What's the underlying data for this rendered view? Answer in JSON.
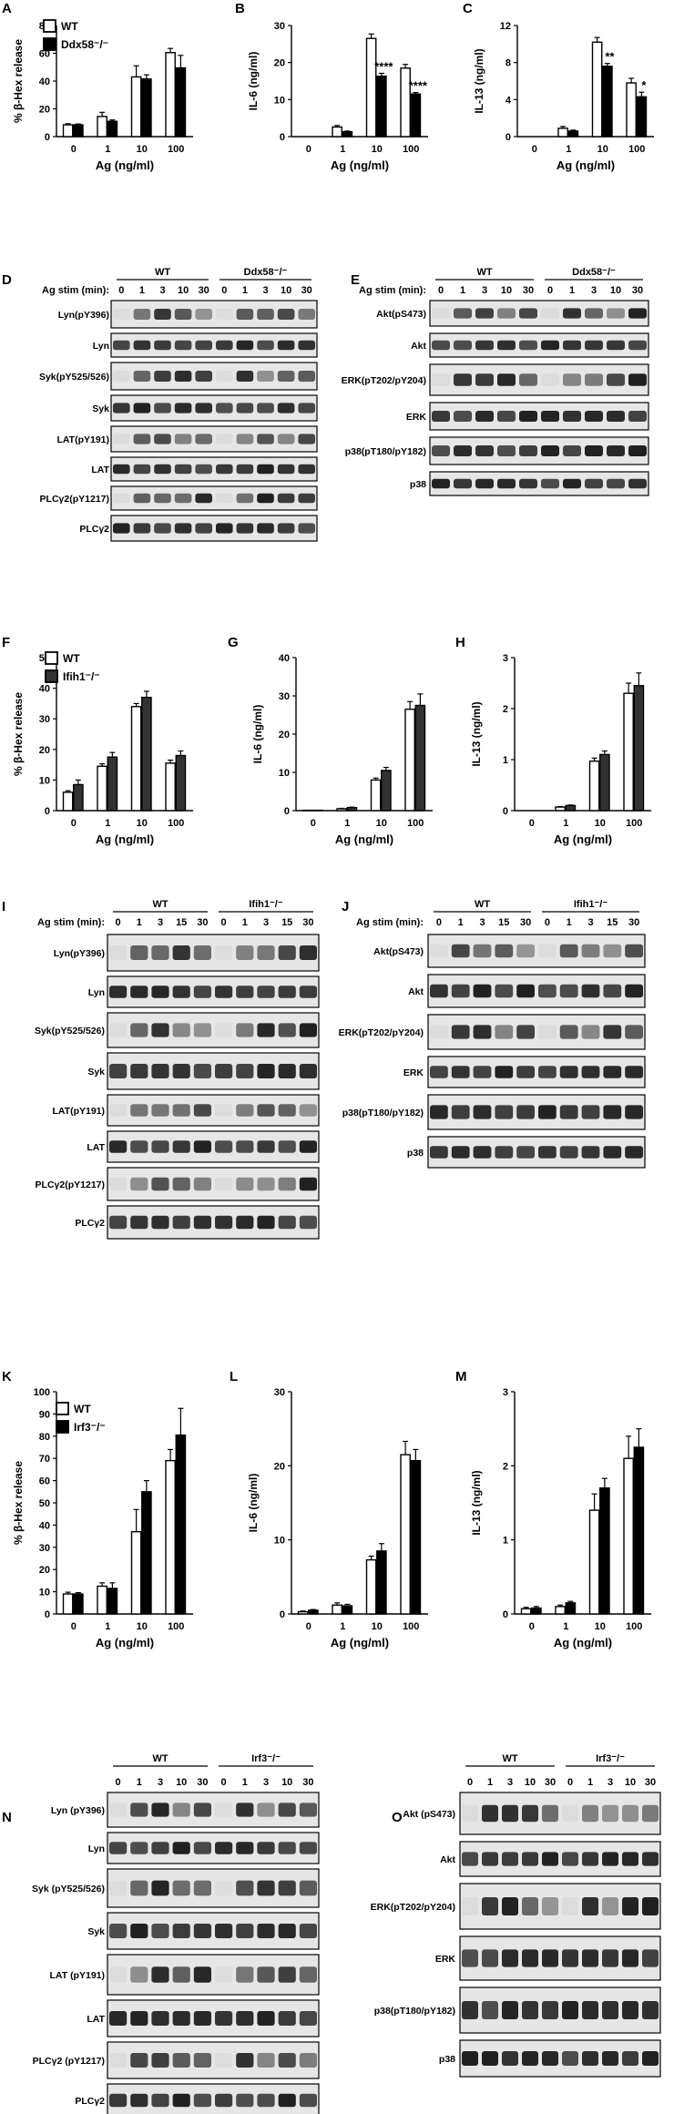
{
  "panels": {
    "A": {
      "letter": "A",
      "ylabel": "% β-Hex release",
      "xlabel": "Ag (ng/ml)",
      "ymax": 80,
      "yticks": [
        0,
        20,
        40,
        60,
        80
      ],
      "categories": [
        "0",
        "1",
        "10",
        "100"
      ],
      "legend": [
        {
          "label": "WT",
          "fill": "#ffffff"
        },
        {
          "label": "Ddx58⁻/⁻",
          "fill": "#000000"
        }
      ],
      "series": [
        {
          "values": [
            8.5,
            14.5,
            43,
            60.5
          ],
          "err": [
            0.8,
            3,
            8,
            3
          ],
          "fill": "#ffffff"
        },
        {
          "values": [
            8.5,
            11,
            41.5,
            49.5
          ],
          "err": [
            0.6,
            1,
            3,
            9
          ],
          "fill": "#000000"
        }
      ],
      "stars": []
    },
    "B": {
      "letter": "B",
      "ylabel": "IL-6 (ng/ml)",
      "xlabel": "Ag (ng/ml)",
      "ymax": 30,
      "yticks": [
        0,
        10,
        20,
        30
      ],
      "categories": [
        "0",
        "1",
        "10",
        "100"
      ],
      "legend": [],
      "series": [
        {
          "values": [
            0,
            2.6,
            26.5,
            18.5
          ],
          "err": [
            0,
            0.4,
            1.2,
            1
          ],
          "fill": "#ffffff"
        },
        {
          "values": [
            0,
            1.3,
            16.3,
            11.5
          ],
          "err": [
            0,
            0.2,
            0.8,
            0.4
          ],
          "fill": "#000000"
        }
      ],
      "stars": [
        {
          "cat": 2,
          "label": "****"
        },
        {
          "cat": 3,
          "label": "****"
        }
      ]
    },
    "C": {
      "letter": "C",
      "ylabel": "IL-13 (ng/ml)",
      "xlabel": "Ag (ng/ml)",
      "ymax": 12,
      "yticks": [
        0,
        4,
        8,
        12
      ],
      "categories": [
        "0",
        "1",
        "10",
        "100"
      ],
      "legend": [],
      "series": [
        {
          "values": [
            0,
            0.9,
            10.2,
            5.8
          ],
          "err": [
            0,
            0.2,
            0.5,
            0.5
          ],
          "fill": "#ffffff"
        },
        {
          "values": [
            0,
            0.6,
            7.6,
            4.3
          ],
          "err": [
            0,
            0.1,
            0.3,
            0.5
          ],
          "fill": "#000000"
        }
      ],
      "stars": [
        {
          "cat": 2,
          "label": "**"
        },
        {
          "cat": 3,
          "label": "*"
        }
      ]
    },
    "F": {
      "letter": "F",
      "ylabel": "% β-Hex release",
      "xlabel": "Ag (ng/ml)",
      "ymax": 50,
      "yticks": [
        0,
        10,
        20,
        30,
        40,
        50
      ],
      "categories": [
        "0",
        "1",
        "10",
        "100"
      ],
      "legend": [
        {
          "label": "WT",
          "fill": "#ffffff"
        },
        {
          "label": "Ifih1⁻/⁻",
          "fill": "#333333"
        }
      ],
      "series": [
        {
          "values": [
            6,
            14.5,
            34,
            15.5
          ],
          "err": [
            0.5,
            0.8,
            1,
            1
          ],
          "fill": "#ffffff"
        },
        {
          "values": [
            8.5,
            17.5,
            37,
            18
          ],
          "err": [
            1.5,
            1.5,
            2,
            1.5
          ],
          "fill": "#333333"
        }
      ],
      "stars": []
    },
    "G": {
      "letter": "G",
      "ylabel": "IL-6 (ng/ml)",
      "xlabel": "Ag (ng/ml)",
      "ymax": 40,
      "yticks": [
        0,
        10,
        20,
        30,
        40
      ],
      "categories": [
        "0",
        "1",
        "10",
        "100"
      ],
      "legend": [],
      "series": [
        {
          "values": [
            0.1,
            0.5,
            8,
            26.5
          ],
          "err": [
            0,
            0.1,
            0.5,
            2
          ],
          "fill": "#ffffff"
        },
        {
          "values": [
            0.1,
            0.8,
            10.5,
            27.5
          ],
          "err": [
            0,
            0.1,
            0.8,
            3
          ],
          "fill": "#333333"
        }
      ],
      "stars": []
    },
    "H": {
      "letter": "H",
      "ylabel": "IL-13 (ng/ml)",
      "xlabel": "Ag (ng/ml)",
      "ymax": 3,
      "yticks": [
        0,
        1,
        2,
        3
      ],
      "categories": [
        "0",
        "1",
        "10",
        "100"
      ],
      "legend": [],
      "series": [
        {
          "values": [
            0,
            0.07,
            0.97,
            2.3
          ],
          "err": [
            0,
            0.01,
            0.06,
            0.2
          ],
          "fill": "#ffffff"
        },
        {
          "values": [
            0,
            0.1,
            1.1,
            2.45
          ],
          "err": [
            0,
            0.01,
            0.07,
            0.25
          ],
          "fill": "#333333"
        }
      ],
      "stars": []
    },
    "K": {
      "letter": "K",
      "ylabel": "% β-Hex release",
      "xlabel": "Ag (ng/ml)",
      "ymax": 100,
      "yticks": [
        0,
        10,
        20,
        30,
        40,
        50,
        60,
        70,
        80,
        90,
        100
      ],
      "categories": [
        "0",
        "1",
        "10",
        "100"
      ],
      "legend": [
        {
          "label": "WT",
          "fill": "#ffffff"
        },
        {
          "label": "Irf3⁻/⁻",
          "fill": "#000000"
        }
      ],
      "series": [
        {
          "values": [
            9,
            12.5,
            37,
            69
          ],
          "err": [
            0.8,
            1.5,
            10,
            5
          ],
          "fill": "#ffffff"
        },
        {
          "values": [
            9,
            11.5,
            55,
            80.5
          ],
          "err": [
            0.6,
            2.5,
            5,
            12
          ],
          "fill": "#000000"
        }
      ],
      "stars": []
    },
    "L": {
      "letter": "L",
      "ylabel": "IL-6 (ng/ml)",
      "xlabel": "Ag (ng/ml)",
      "ymax": 30,
      "yticks": [
        0,
        10,
        20,
        30
      ],
      "categories": [
        "0",
        "1",
        "10",
        "100"
      ],
      "legend": [],
      "series": [
        {
          "values": [
            0.3,
            1.2,
            7.3,
            21.5
          ],
          "err": [
            0.1,
            0.3,
            0.5,
            1.8
          ],
          "fill": "#ffffff"
        },
        {
          "values": [
            0.5,
            1.1,
            8.5,
            20.7
          ],
          "err": [
            0.1,
            0.2,
            1,
            1.5
          ],
          "fill": "#000000"
        }
      ],
      "stars": []
    },
    "M": {
      "letter": "M",
      "ylabel": "IL-13 (ng/ml)",
      "xlabel": "Ag (ng/ml)",
      "ymax": 3,
      "yticks": [
        0,
        1,
        2,
        3
      ],
      "categories": [
        "0",
        "1",
        "10",
        "100"
      ],
      "legend": [],
      "series": [
        {
          "values": [
            0.07,
            0.1,
            1.4,
            2.1
          ],
          "err": [
            0.02,
            0.02,
            0.22,
            0.3
          ],
          "fill": "#ffffff"
        },
        {
          "values": [
            0.08,
            0.15,
            1.7,
            2.25
          ],
          "err": [
            0.02,
            0.02,
            0.13,
            0.25
          ],
          "fill": "#000000"
        }
      ],
      "stars": []
    }
  },
  "blots": {
    "D": {
      "letter": "D",
      "stim_label": "Ag stim (min):",
      "groups": [
        "WT",
        "Ddx58⁻/⁻"
      ],
      "times": [
        "0",
        "1",
        "3",
        "10",
        "30"
      ],
      "rows": [
        "Lyn(pY396)",
        "Lyn",
        "Syk(pY525/526)",
        "Syk",
        "LAT(pY191)",
        "LAT",
        "PLCγ2(pY1217)",
        "PLCγ2"
      ]
    },
    "E": {
      "letter": "E",
      "stim_label": "Ag stim (min):",
      "groups": [
        "WT",
        "Ddx58⁻/⁻"
      ],
      "times": [
        "0",
        "1",
        "3",
        "10",
        "30"
      ],
      "rows": [
        "Akt(pS473)",
        "Akt",
        "ERK(pT202/pY204)",
        "ERK",
        "p38(pT180/pY182)",
        "p38"
      ]
    },
    "I": {
      "letter": "I",
      "stim_label": "Ag stim (min):",
      "groups": [
        "WT",
        "Ifih1⁻/⁻"
      ],
      "times": [
        "0",
        "1",
        "3",
        "15",
        "30"
      ],
      "rows": [
        "Lyn(pY396)",
        "Lyn",
        "Syk(pY525/526)",
        "Syk",
        "LAT(pY191)",
        "LAT",
        "PLCγ2(pY1217)",
        "PLCγ2"
      ]
    },
    "J": {
      "letter": "J",
      "stim_label": "Ag stim (min):",
      "groups": [
        "WT",
        "Ifih1⁻/⁻"
      ],
      "times": [
        "0",
        "1",
        "3",
        "15",
        "30"
      ],
      "rows": [
        "Akt(pS473)",
        "Akt",
        "ERK(pT202/pY204)",
        "ERK",
        "p38(pT180/pY182)",
        "p38"
      ]
    },
    "N": {
      "letter": "N",
      "stim_label": "",
      "groups": [
        "WT",
        "Irf3⁻/⁻"
      ],
      "times": [
        "0",
        "1",
        "3",
        "10",
        "30"
      ],
      "rows": [
        "Lyn (pY396)",
        "Lyn",
        "Syk (pY525/526)",
        "Syk",
        "LAT (pY191)",
        "LAT",
        "PLCγ2 (pY1217)",
        "PLCγ2"
      ]
    },
    "O": {
      "letter": "O",
      "stim_label": "",
      "groups": [
        "WT",
        "Irf3⁻/⁻"
      ],
      "times": [
        "0",
        "1",
        "3",
        "10",
        "30"
      ],
      "rows": [
        "Akt (pS473)",
        "Akt",
        "ERK(pT202/pY204)",
        "ERK",
        "p38(pT180/pY182)",
        "p38"
      ]
    }
  }
}
